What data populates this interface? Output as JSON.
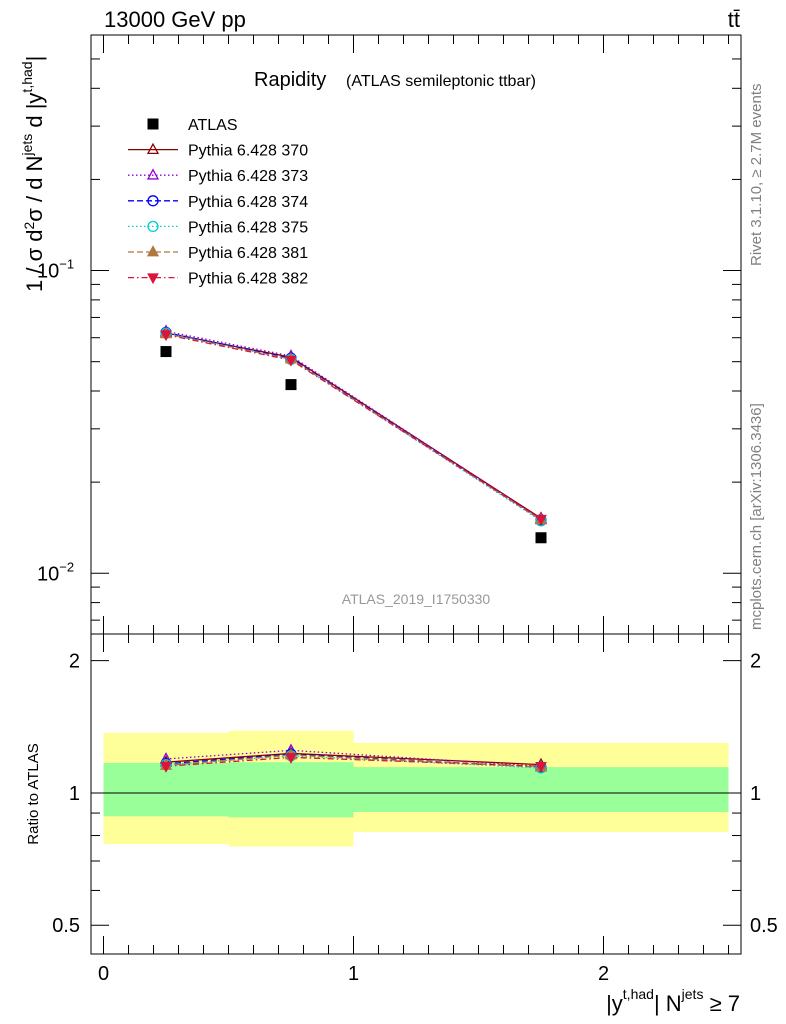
{
  "header": {
    "energy_label": "13000 GeV pp",
    "process_label": "tt̄"
  },
  "side_labels": {
    "rivet": "Rivet 3.1.10, ≥ 2.7M events",
    "mcplots": "mcplots.cern.ch [arXiv:1306.3436]"
  },
  "watermark": "ATLAS_2019_I1750330",
  "colors": {
    "data": "#000000",
    "p370": "#8b0000",
    "p373": "#9400d3",
    "p374": "#0000ff",
    "p375": "#00ced1",
    "p381": "#b07840",
    "p382": "#dc143c",
    "band_stat": "#99ff99",
    "band_total": "#ffff99"
  },
  "chart_data": [
    {
      "type": "scatter",
      "title": "Rapidity",
      "subtitle": "(ATLAS semileptonic ttbar)",
      "ylabel": "1 / σ d²σ / d N^jets d |y^t,had|",
      "yscale": "log",
      "ylim": [
        0.0063,
        0.6
      ],
      "xlim": [
        -0.05,
        2.55
      ],
      "yticks": [
        {
          "value": 0.1,
          "label": "10",
          "exp": "−1"
        },
        {
          "value": 0.01,
          "label": "10",
          "exp": "−2"
        }
      ],
      "bins": [
        [
          0,
          0.5
        ],
        [
          0.5,
          1
        ],
        [
          1,
          2.5
        ]
      ],
      "x": [
        0.25,
        0.75,
        1.75
      ],
      "legend_position": "top-left",
      "series": [
        {
          "name": "ATLAS",
          "key": "data",
          "marker": "square",
          "line": "none",
          "values": [
            0.054,
            0.042,
            0.0131
          ]
        },
        {
          "name": "Pythia 6.428 370",
          "key": "p370",
          "marker": "triangle-open",
          "line": "solid",
          "values": [
            0.0622,
            0.0517,
            0.0152
          ]
        },
        {
          "name": "Pythia 6.428 373",
          "key": "p373",
          "marker": "triangle-open",
          "line": "dotted",
          "values": [
            0.063,
            0.0522,
            0.0151
          ]
        },
        {
          "name": "Pythia 6.428 374",
          "key": "p374",
          "marker": "circle-open",
          "line": "dashed",
          "values": [
            0.0624,
            0.0513,
            0.015
          ]
        },
        {
          "name": "Pythia 6.428 375",
          "key": "p375",
          "marker": "circle-open",
          "line": "dotted",
          "values": [
            0.0621,
            0.0509,
            0.0149
          ]
        },
        {
          "name": "Pythia 6.428 381",
          "key": "p381",
          "marker": "triangle-filled",
          "line": "dashed",
          "values": [
            0.0618,
            0.051,
            0.015
          ]
        },
        {
          "name": "Pythia 6.428 382",
          "key": "p382",
          "marker": "triangle-down-filled",
          "line": "dashdot",
          "values": [
            0.0614,
            0.0506,
            0.0151
          ]
        }
      ]
    },
    {
      "type": "scatter",
      "ylabel": "Ratio to ATLAS",
      "xlabel": "|y^t,had| N^jets ≥ 7",
      "yscale": "log",
      "ylim": [
        0.43,
        2.3
      ],
      "xlim": [
        -0.05,
        2.55
      ],
      "yticks": [
        {
          "value": 0.5,
          "label": "0.5"
        },
        {
          "value": 1,
          "label": "1"
        },
        {
          "value": 2,
          "label": "2"
        }
      ],
      "xticks": [
        {
          "value": 0,
          "label": "0"
        },
        {
          "value": 1,
          "label": "1"
        },
        {
          "value": 2,
          "label": "2"
        }
      ],
      "x": [
        0.25,
        0.75,
        1.75
      ],
      "bands": [
        {
          "bin": [
            0,
            0.5
          ],
          "inner": [
            0.885,
            1.17
          ],
          "outer": [
            0.765,
            1.37
          ]
        },
        {
          "bin": [
            0.5,
            1
          ],
          "inner": [
            0.88,
            1.175
          ],
          "outer": [
            0.755,
            1.385
          ]
        },
        {
          "bin": [
            1,
            2.5
          ],
          "inner": [
            0.905,
            1.145
          ],
          "outer": [
            0.815,
            1.3
          ]
        }
      ],
      "series": [
        {
          "name": "Pythia 6.428 370",
          "key": "p370",
          "marker": "triangle-open",
          "line": "solid",
          "values": [
            1.175,
            1.23,
            1.16
          ]
        },
        {
          "name": "Pythia 6.428 373",
          "key": "p373",
          "marker": "triangle-open",
          "line": "dotted",
          "values": [
            1.195,
            1.25,
            1.15
          ]
        },
        {
          "name": "Pythia 6.428 374",
          "key": "p374",
          "marker": "circle-open",
          "line": "dashed",
          "values": [
            1.165,
            1.225,
            1.145
          ]
        },
        {
          "name": "Pythia 6.428 375",
          "key": "p375",
          "marker": "circle-open",
          "line": "dotted",
          "values": [
            1.16,
            1.215,
            1.14
          ]
        },
        {
          "name": "Pythia 6.428 381",
          "key": "p381",
          "marker": "triangle-filled",
          "line": "dashed",
          "values": [
            1.155,
            1.22,
            1.145
          ]
        },
        {
          "name": "Pythia 6.428 382",
          "key": "p382",
          "marker": "triangle-down-filled",
          "line": "dashdot",
          "values": [
            1.15,
            1.205,
            1.15
          ]
        }
      ]
    }
  ]
}
